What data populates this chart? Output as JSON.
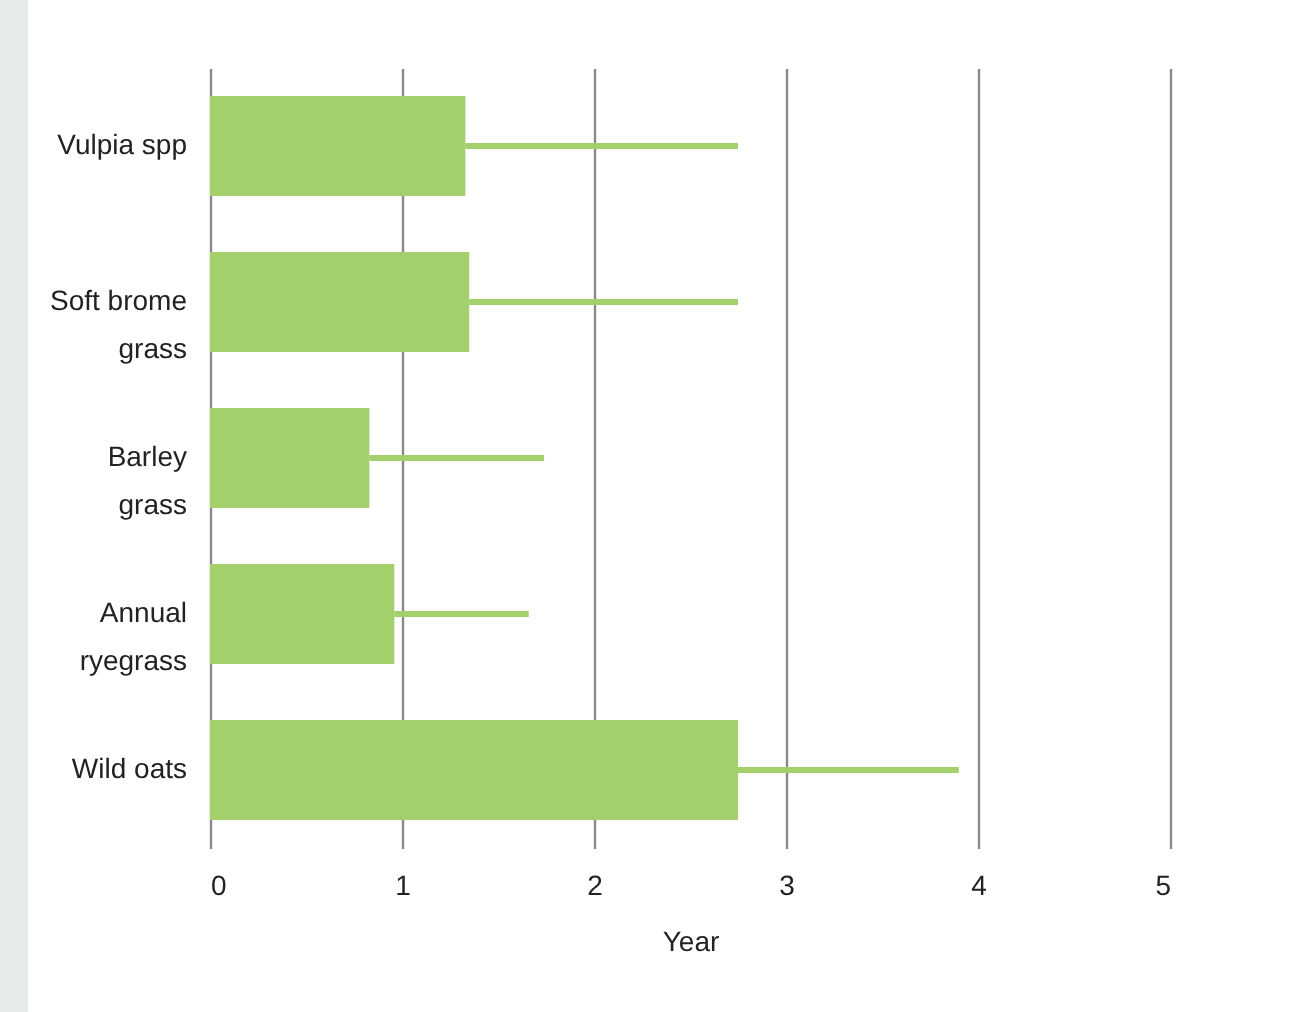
{
  "chart_data": {
    "type": "bar",
    "orientation": "horizontal",
    "xlabel": "Year",
    "categories": [
      "Vulpia spp",
      "Soft brome grass",
      "Barley grass",
      "Annual ryegrass",
      "Wild oats"
    ],
    "values": [
      1.33,
      1.35,
      0.83,
      0.96,
      2.75
    ],
    "errors": [
      [
        1.33,
        2.75
      ],
      [
        1.35,
        2.75
      ],
      [
        0.83,
        1.74
      ],
      [
        0.96,
        1.66
      ],
      [
        2.75,
        3.9
      ]
    ],
    "color": "#a3d06a",
    "xlim": [
      0,
      5
    ],
    "xticks": [
      0,
      1,
      2,
      3,
      4,
      5
    ],
    "grid": "x"
  }
}
